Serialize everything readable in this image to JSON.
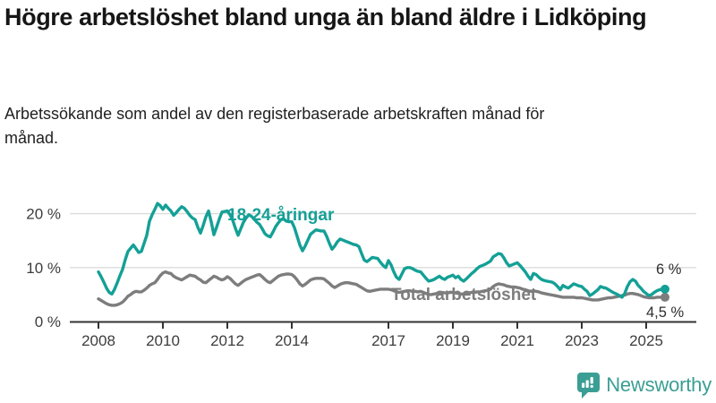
{
  "header": {
    "title": "Högre arbetslöshet bland unga än bland äldre i Lidköping",
    "subtitle": "Arbetssökande som andel av den registerbaserade arbetskraften månad för månad."
  },
  "chart_data": {
    "type": "line",
    "title": "Högre arbetslöshet bland unga än bland äldre i Lidköping",
    "subtitle": "Arbetssökande som andel av den registerbaserade arbetskraften månad för månad.",
    "unit": "%",
    "frequency": "monthly",
    "x_start": {
      "year": 2008,
      "month": 1
    },
    "x_end": {
      "year": 2025,
      "month": 8
    },
    "ylim": [
      0,
      22
    ],
    "grid": "horizontal",
    "legend_position": "inline-labels",
    "yticks": [
      {
        "value": 0,
        "label": "0 %"
      },
      {
        "value": 10,
        "label": "10 %"
      },
      {
        "value": 20,
        "label": "20 %"
      }
    ],
    "xticks": [
      {
        "year": 2008,
        "label": "2008"
      },
      {
        "year": 2010,
        "label": "2010"
      },
      {
        "year": 2012,
        "label": "2012"
      },
      {
        "year": 2014,
        "label": "2014"
      },
      {
        "year": 2017,
        "label": "2017"
      },
      {
        "year": 2019,
        "label": "2019"
      },
      {
        "year": 2021,
        "label": "2021"
      },
      {
        "year": 2023,
        "label": "2023"
      },
      {
        "year": 2025,
        "label": "2025"
      }
    ],
    "series": [
      {
        "name": "Total arbetslöshet",
        "color": "#7d7d7d",
        "end_label": "4,5 %",
        "end_value": 4.5,
        "values": [
          4.2,
          3.9,
          3.6,
          3.3,
          3.1,
          3.0,
          3.0,
          3.1,
          3.3,
          3.6,
          4.1,
          4.7,
          5.0,
          5.4,
          5.6,
          5.5,
          5.5,
          5.8,
          6.2,
          6.7,
          7.0,
          7.2,
          7.8,
          8.5,
          9.0,
          9.2,
          9.0,
          8.9,
          8.4,
          8.1,
          7.9,
          7.7,
          8.0,
          8.3,
          8.6,
          8.5,
          8.4,
          8.0,
          7.7,
          7.3,
          7.2,
          7.6,
          8.0,
          8.4,
          8.2,
          7.9,
          7.7,
          7.9,
          8.3,
          8.0,
          7.5,
          7.0,
          6.7,
          7.1,
          7.5,
          7.8,
          8.0,
          8.2,
          8.4,
          8.6,
          8.7,
          8.3,
          7.8,
          7.4,
          7.2,
          7.6,
          8.0,
          8.4,
          8.6,
          8.7,
          8.8,
          8.8,
          8.7,
          8.3,
          7.7,
          7.0,
          6.6,
          6.9,
          7.3,
          7.7,
          7.9,
          8.0,
          8.0,
          8.0,
          7.9,
          7.5,
          7.1,
          6.6,
          6.3,
          6.6,
          6.9,
          7.1,
          7.2,
          7.2,
          7.1,
          7.0,
          6.9,
          6.6,
          6.3,
          6.0,
          5.7,
          5.6,
          5.7,
          5.8,
          5.9,
          6.0,
          6.0,
          6.0,
          6.0,
          5.9,
          5.7,
          5.5,
          5.4,
          5.5,
          5.6,
          5.7,
          5.7,
          5.6,
          5.6,
          5.5,
          5.6,
          5.4,
          5.2,
          5.0,
          5.0,
          5.1,
          5.2,
          5.3,
          5.4,
          5.3,
          5.3,
          5.4,
          5.4,
          5.3,
          5.2,
          5.1,
          5.1,
          5.2,
          5.3,
          5.4,
          5.4,
          5.5,
          5.5,
          5.6,
          5.7,
          5.8,
          6.0,
          6.5,
          6.8,
          7.0,
          6.9,
          6.8,
          6.6,
          6.5,
          6.4,
          6.4,
          6.3,
          6.2,
          6.0,
          5.9,
          5.7,
          5.6,
          5.7,
          5.6,
          5.5,
          5.3,
          5.2,
          5.1,
          5.0,
          4.9,
          4.8,
          4.7,
          4.6,
          4.5,
          4.5,
          4.5,
          4.5,
          4.5,
          4.4,
          4.4,
          4.4,
          4.3,
          4.2,
          4.1,
          4.0,
          4.0,
          4.0,
          4.1,
          4.2,
          4.3,
          4.4,
          4.4,
          4.5,
          4.6,
          4.7,
          4.8,
          4.9,
          5.1,
          5.2,
          5.2,
          5.1,
          5.0,
          4.8,
          4.6,
          4.5,
          4.4,
          4.4,
          4.4,
          4.5,
          4.5,
          4.5,
          4.5
        ]
      },
      {
        "name": "18-24-åringar",
        "color": "#14a096",
        "end_label": "6 %",
        "end_value": 6.0,
        "values": [
          9.2,
          8.3,
          7.3,
          6.2,
          5.4,
          5.1,
          6.0,
          7.2,
          8.5,
          9.7,
          11.5,
          13.0,
          13.6,
          14.2,
          13.5,
          12.8,
          13.0,
          14.5,
          16.0,
          18.6,
          19.8,
          20.8,
          21.9,
          21.5,
          20.8,
          21.6,
          21.0,
          20.5,
          19.7,
          20.2,
          20.8,
          21.3,
          21.0,
          20.4,
          19.7,
          19.2,
          18.9,
          17.5,
          16.4,
          17.8,
          19.4,
          20.5,
          18.5,
          16.1,
          17.5,
          19.0,
          20.3,
          20.4,
          20.5,
          19.8,
          18.8,
          17.3,
          16.0,
          17.2,
          18.4,
          19.2,
          19.8,
          19.5,
          19.0,
          18.4,
          18.0,
          17.2,
          16.3,
          15.9,
          15.7,
          16.6,
          17.6,
          18.3,
          18.9,
          19.0,
          18.6,
          18.5,
          18.5,
          17.4,
          15.8,
          14.2,
          13.1,
          14.0,
          15.1,
          16.2,
          16.6,
          17.0,
          16.9,
          16.8,
          16.8,
          15.8,
          14.5,
          13.4,
          14.0,
          14.8,
          15.3,
          15.1,
          14.9,
          14.7,
          14.5,
          14.3,
          14.2,
          13.9,
          12.6,
          11.4,
          11.1,
          11.5,
          11.9,
          11.8,
          11.7,
          11.0,
          10.4,
          10.0,
          11.3,
          10.5,
          9.2,
          8.2,
          7.8,
          8.8,
          9.8,
          10.0,
          10.0,
          9.8,
          9.5,
          9.3,
          9.2,
          8.6,
          8.0,
          7.5,
          7.6,
          7.8,
          8.1,
          8.4,
          8.0,
          7.8,
          8.2,
          8.4,
          8.6,
          8.1,
          8.4,
          7.8,
          7.5,
          7.9,
          8.4,
          8.9,
          9.3,
          9.8,
          10.2,
          10.4,
          10.6,
          10.9,
          11.2,
          12.0,
          12.3,
          12.6,
          12.5,
          11.8,
          10.9,
          10.3,
          10.5,
          10.7,
          10.9,
          10.4,
          9.8,
          9.2,
          8.4,
          7.8,
          8.9,
          8.7,
          8.2,
          7.8,
          7.6,
          7.5,
          7.4,
          7.3,
          7.0,
          6.5,
          5.9,
          6.7,
          6.4,
          6.2,
          6.6,
          7.0,
          6.8,
          6.6,
          6.5,
          6.0,
          5.6,
          4.8,
          5.1,
          5.5,
          5.9,
          6.5,
          6.3,
          6.2,
          5.9,
          5.6,
          5.3,
          5.1,
          4.8,
          4.5,
          5.2,
          6.5,
          7.4,
          7.8,
          7.5,
          6.7,
          6.2,
          5.6,
          5.2,
          4.8,
          5.0,
          5.4,
          5.7,
          5.9,
          6.0,
          6.0
        ]
      }
    ]
  },
  "annotations": {
    "youth_label": "18-24-åringar",
    "total_label": "Total arbetslöshet",
    "youth_end_value": "6 %",
    "total_end_value": "4,5 %"
  },
  "logo": {
    "text": "Newsworthy",
    "color": "#3b9e94"
  }
}
